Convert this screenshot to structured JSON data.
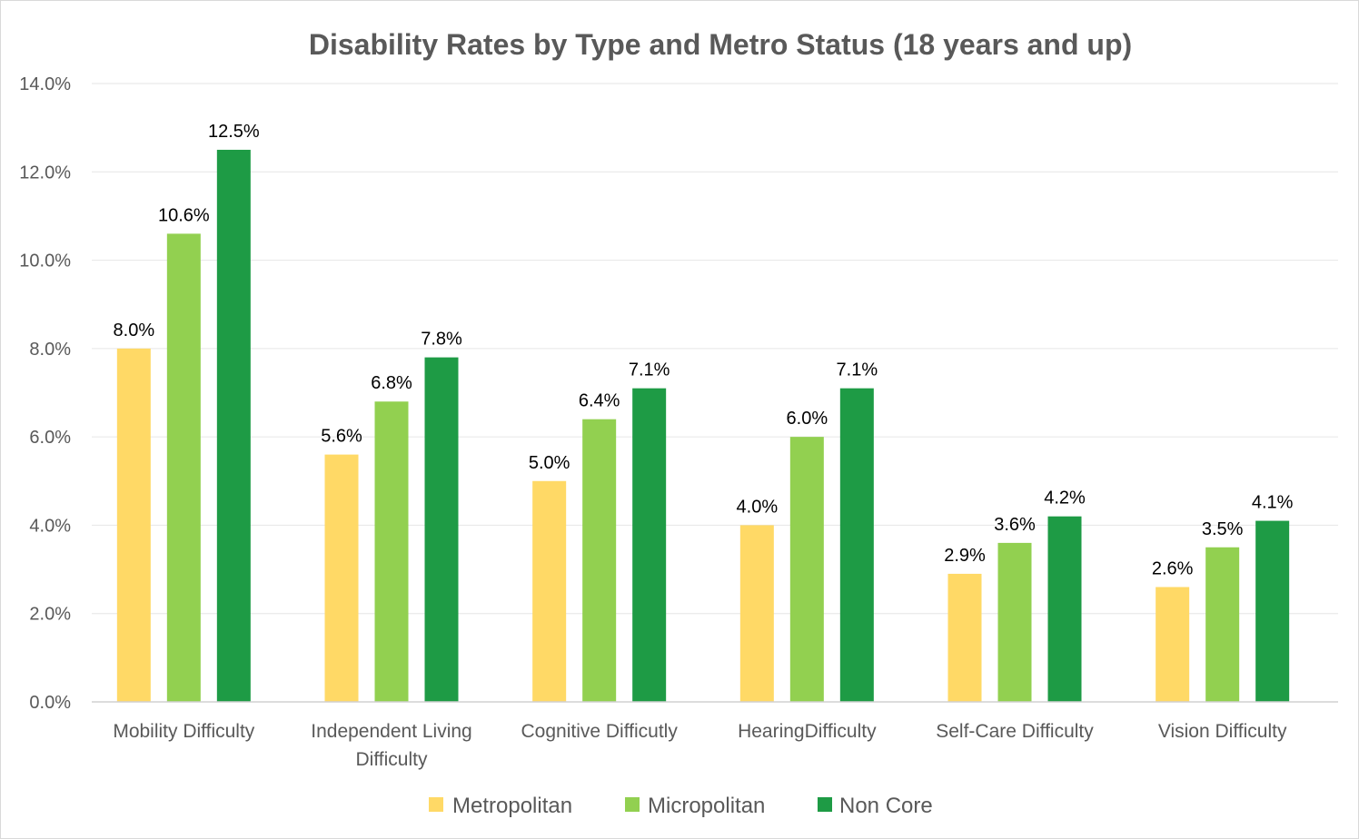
{
  "chart_data": {
    "type": "bar",
    "title": "Disability Rates by Type and Metro Status (18 years and up)",
    "categories": [
      [
        "Mobility Difficulty"
      ],
      [
        "Independent Living",
        "Difficulty"
      ],
      [
        "Cognitive Difficutly"
      ],
      [
        "HearingDifficulty"
      ],
      [
        "Self-Care Difficulty"
      ],
      [
        "Vision Difficulty"
      ]
    ],
    "series": [
      {
        "name": "Metropolitan",
        "color": "#FFD966",
        "values": [
          8.0,
          5.6,
          5.0,
          4.0,
          2.9,
          2.6
        ],
        "labels": [
          "8.0%",
          "5.6%",
          "5.0%",
          "4.0%",
          "2.9%",
          "2.6%"
        ]
      },
      {
        "name": "Micropolitan",
        "color": "#92D050",
        "values": [
          10.6,
          6.8,
          6.4,
          6.0,
          3.6,
          3.5
        ],
        "labels": [
          "10.6%",
          "6.8%",
          "6.4%",
          "6.0%",
          "3.6%",
          "3.5%"
        ]
      },
      {
        "name": "Non Core",
        "color": "#1E9B45",
        "values": [
          12.5,
          7.8,
          7.1,
          7.1,
          4.2,
          4.1
        ],
        "labels": [
          "12.5%",
          "7.8%",
          "7.1%",
          "7.1%",
          "4.2%",
          "4.1%"
        ]
      }
    ],
    "y_ticks": [
      "0.0%",
      "2.0%",
      "4.0%",
      "6.0%",
      "8.0%",
      "10.0%",
      "12.0%",
      "14.0%"
    ],
    "ylim": [
      0,
      14
    ],
    "grid": true,
    "legend": "bottom"
  }
}
